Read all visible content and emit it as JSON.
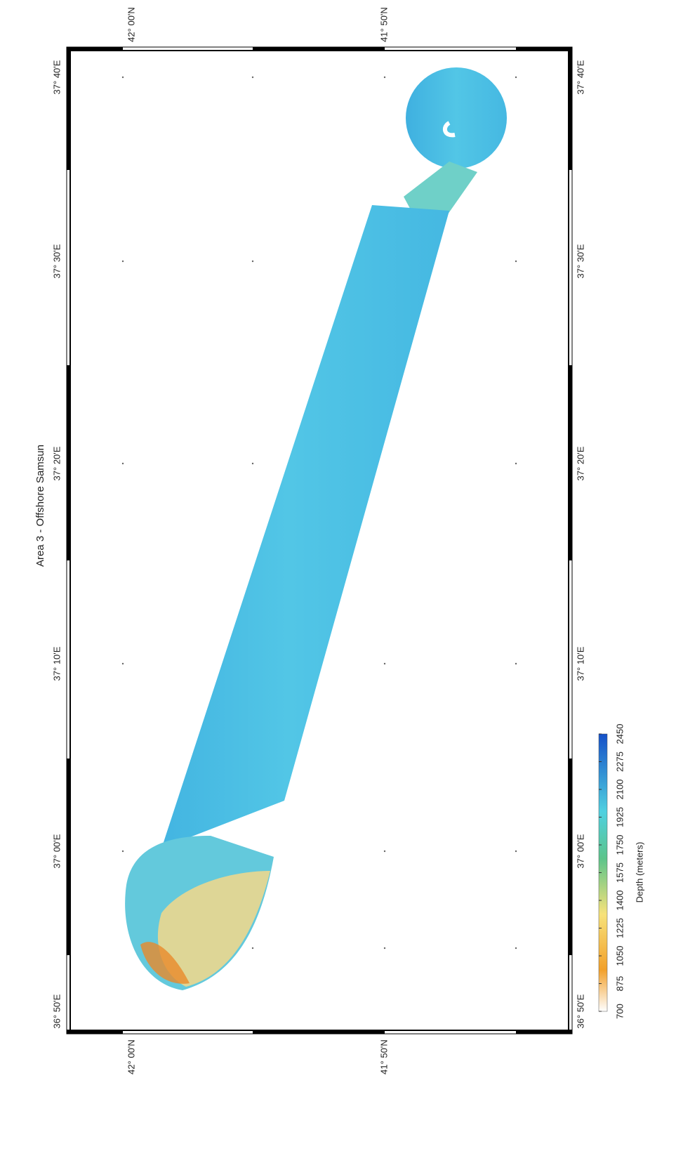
{
  "title": "Area 3 - Offshore Samsun",
  "lat_labels": [
    "42° 00'N",
    "41° 50'N"
  ],
  "lon_labels": [
    "37° 40'E",
    "37° 30'E",
    "37° 20'E",
    "37° 10'E",
    "37° 00'E",
    "36° 50'E"
  ],
  "colorbar": {
    "label": "Depth (meters)",
    "ticks": [
      700,
      875,
      1050,
      1225,
      1400,
      1575,
      1750,
      1925,
      2100,
      2275,
      2450
    ]
  }
}
